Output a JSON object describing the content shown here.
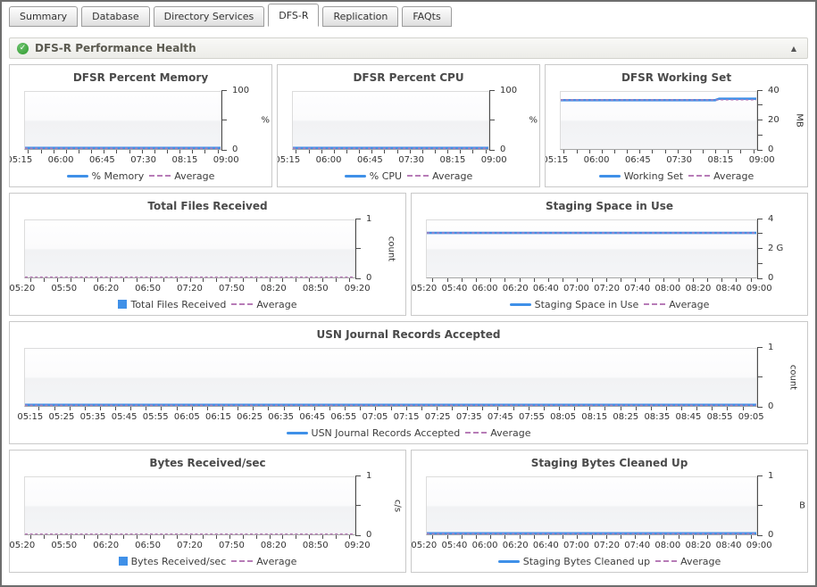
{
  "tabs": [
    {
      "label": "Summary",
      "active": false
    },
    {
      "label": "Database",
      "active": false
    },
    {
      "label": "Directory Services",
      "active": false
    },
    {
      "label": "DFS-R",
      "active": true
    },
    {
      "label": "Replication",
      "active": false
    },
    {
      "label": "FAQts",
      "active": false
    }
  ],
  "section": {
    "title": "DFS-R Performance Health",
    "status_icon": "check-circle-icon",
    "status_color": "#2e9a2e",
    "check_glyph": "✓",
    "collapse_glyph": "▲"
  },
  "colors": {
    "series_blue": "#3f90e8",
    "average_dash": "#b77cb7",
    "axis": "#4d4d4d"
  },
  "chart_data": [
    {
      "type": "line",
      "title": "DFSR Percent Memory",
      "unit": "%",
      "unit_rotated": false,
      "ylim": [
        0,
        100
      ],
      "y_ticks": [
        {
          "p": 0,
          "label": "0"
        },
        {
          "p": 0.5,
          "label": ""
        },
        {
          "p": 1,
          "label": "100"
        }
      ],
      "x_labels": [
        "05:15",
        "06:00",
        "06:45",
        "07:30",
        "08:15",
        "09:00"
      ],
      "minor_ticks": 2,
      "series": {
        "name": "% Memory",
        "points": [
          [
            0,
            1.3
          ],
          [
            1,
            1.3
          ]
        ]
      },
      "average": 1.3,
      "legend": [
        {
          "swatch": "line",
          "label": "% Memory"
        },
        {
          "swatch": "dash",
          "label": "Average"
        }
      ]
    },
    {
      "type": "line",
      "title": "DFSR Percent CPU",
      "unit": "%",
      "unit_rotated": false,
      "ylim": [
        0,
        100
      ],
      "y_ticks": [
        {
          "p": 0,
          "label": "0"
        },
        {
          "p": 0.5,
          "label": ""
        },
        {
          "p": 1,
          "label": "100"
        }
      ],
      "x_labels": [
        "05:15",
        "06:00",
        "06:45",
        "07:30",
        "08:15",
        "09:00"
      ],
      "minor_ticks": 2,
      "series": {
        "name": "% CPU",
        "points": [
          [
            0,
            1.4
          ],
          [
            0.12,
            1.1
          ],
          [
            0.27,
            1.5
          ],
          [
            0.45,
            1.2
          ],
          [
            0.6,
            1.5
          ],
          [
            0.75,
            1.1
          ],
          [
            0.88,
            1.6
          ],
          [
            1,
            1.5
          ]
        ]
      },
      "average": 1.3,
      "legend": [
        {
          "swatch": "line",
          "label": "% CPU"
        },
        {
          "swatch": "dash",
          "label": "Average"
        }
      ]
    },
    {
      "type": "line",
      "title": "DFSR Working Set",
      "unit": "MB",
      "unit_rotated": true,
      "ylim": [
        0,
        40
      ],
      "y_ticks": [
        {
          "p": 0,
          "label": "0"
        },
        {
          "p": 0.25,
          "label": ""
        },
        {
          "p": 0.5,
          "label": "20"
        },
        {
          "p": 0.75,
          "label": ""
        },
        {
          "p": 1,
          "label": "40"
        }
      ],
      "x_labels": [
        "05:15",
        "06:00",
        "06:45",
        "07:30",
        "08:15",
        "09:00"
      ],
      "minor_ticks": 2,
      "series": {
        "name": "Working Set",
        "points": [
          [
            0,
            34.2
          ],
          [
            0.79,
            34.2
          ],
          [
            0.81,
            35.2
          ],
          [
            1,
            35.2
          ]
        ]
      },
      "average": 34.4,
      "legend": [
        {
          "swatch": "line",
          "label": "Working Set"
        },
        {
          "swatch": "dash",
          "label": "Average"
        }
      ]
    },
    {
      "type": "bar",
      "title": "Total Files Received",
      "unit": "count",
      "unit_rotated": true,
      "ylim": [
        0,
        1
      ],
      "y_ticks": [
        {
          "p": 0,
          "label": "0"
        },
        {
          "p": 0.5,
          "label": ""
        },
        {
          "p": 1,
          "label": "1"
        }
      ],
      "x_labels": [
        "05:20",
        "05:50",
        "06:20",
        "06:50",
        "07:20",
        "07:50",
        "08:20",
        "08:50",
        "09:20"
      ],
      "minor_ticks": 2,
      "series": {
        "name": "Total Files Received",
        "points": []
      },
      "average": 0,
      "legend": [
        {
          "swatch": "square",
          "label": "Total Files Received"
        },
        {
          "swatch": "dash",
          "label": "Average"
        }
      ]
    },
    {
      "type": "line",
      "title": "Staging Space in Use",
      "unit": "",
      "unit_rotated": false,
      "ylim": [
        0,
        4
      ],
      "y_ticks": [
        {
          "p": 0,
          "label": "0"
        },
        {
          "p": 0.25,
          "label": ""
        },
        {
          "p": 0.5,
          "label": "2 G"
        },
        {
          "p": 0.75,
          "label": ""
        },
        {
          "p": 1,
          "label": "4"
        }
      ],
      "x_labels": [
        "05:20",
        "05:40",
        "06:00",
        "06:20",
        "06:40",
        "07:00",
        "07:20",
        "07:40",
        "08:00",
        "08:20",
        "08:40",
        "09:00"
      ],
      "minor_ticks": 1,
      "series": {
        "name": "Staging Space in Use",
        "points": [
          [
            0,
            3.12
          ],
          [
            1,
            3.12
          ]
        ]
      },
      "average": 3.12,
      "legend": [
        {
          "swatch": "line",
          "label": "Staging Space in Use"
        },
        {
          "swatch": "dash",
          "label": "Average"
        }
      ]
    },
    {
      "type": "line",
      "title": "USN Journal Records Accepted",
      "unit": "count",
      "unit_rotated": true,
      "ylim": [
        0,
        1
      ],
      "y_ticks": [
        {
          "p": 0,
          "label": "0"
        },
        {
          "p": 0.5,
          "label": ""
        },
        {
          "p": 1,
          "label": "1"
        }
      ],
      "x_labels": [
        "05:15",
        "05:25",
        "05:35",
        "05:45",
        "05:55",
        "06:05",
        "06:15",
        "06:25",
        "06:35",
        "06:45",
        "06:55",
        "07:05",
        "07:15",
        "07:25",
        "07:35",
        "07:45",
        "07:55",
        "08:05",
        "08:15",
        "08:25",
        "08:35",
        "08:45",
        "08:55",
        "09:05"
      ],
      "minor_ticks": 1,
      "series": {
        "name": "USN Journal Records Accepted",
        "points": [
          [
            0,
            0.012
          ],
          [
            1,
            0.012
          ]
        ]
      },
      "average": 0.012,
      "legend": [
        {
          "swatch": "line",
          "label": "USN Journal Records Accepted"
        },
        {
          "swatch": "dash",
          "label": "Average"
        }
      ]
    },
    {
      "type": "bar",
      "title": "Bytes Received/sec",
      "unit": "c/s",
      "unit_rotated": true,
      "ylim": [
        0,
        1
      ],
      "y_ticks": [
        {
          "p": 0,
          "label": "0"
        },
        {
          "p": 0.5,
          "label": ""
        },
        {
          "p": 1,
          "label": "1"
        }
      ],
      "x_labels": [
        "05:20",
        "05:50",
        "06:20",
        "06:50",
        "07:20",
        "07:50",
        "08:20",
        "08:50",
        "09:20"
      ],
      "minor_ticks": 2,
      "series": {
        "name": "Bytes Received/sec",
        "points": []
      },
      "average": 0,
      "legend": [
        {
          "swatch": "square",
          "label": "Bytes Received/sec"
        },
        {
          "swatch": "dash",
          "label": "Average"
        }
      ]
    },
    {
      "type": "line",
      "title": "Staging Bytes Cleaned Up",
      "unit": "B",
      "unit_rotated": false,
      "ylim": [
        0,
        1
      ],
      "y_ticks": [
        {
          "p": 0,
          "label": "0"
        },
        {
          "p": 0.5,
          "label": ""
        },
        {
          "p": 1,
          "label": "1"
        }
      ],
      "x_labels": [
        "05:20",
        "05:40",
        "06:00",
        "06:20",
        "06:40",
        "07:00",
        "07:20",
        "07:40",
        "08:00",
        "08:20",
        "08:40",
        "09:00"
      ],
      "minor_ticks": 1,
      "series": {
        "name": "Staging Bytes Cleaned up",
        "points": [
          [
            0,
            0.012
          ],
          [
            1,
            0.012
          ]
        ]
      },
      "average": 0.012,
      "legend": [
        {
          "swatch": "line",
          "label": "Staging Bytes Cleaned up"
        },
        {
          "swatch": "dash",
          "label": "Average"
        }
      ]
    }
  ]
}
